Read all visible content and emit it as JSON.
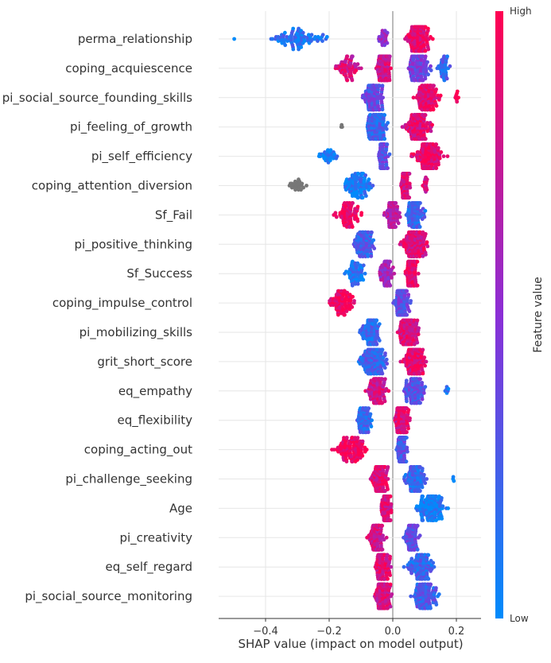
{
  "chart_data": {
    "type": "scatter",
    "subtype": "shap-beeswarm",
    "title": "",
    "xlabel": "SHAP value (impact on model output)",
    "ylabel": "",
    "xlim": [
      -0.55,
      0.27
    ],
    "x_ticks": [
      -0.4,
      -0.2,
      0.0,
      0.2
    ],
    "x_tick_labels": [
      "−0.4",
      "−0.2",
      "0.0",
      "0.2"
    ],
    "grid": true,
    "colorbar": {
      "label": "Feature value",
      "high_label": "High",
      "low_label": "Low",
      "high_color": "#ff0051",
      "low_color": "#008bfb",
      "missing_color": "#777777"
    },
    "features": [
      {
        "name": "perma_relationship",
        "clusters": [
          {
            "x": -0.5,
            "spread": 0.0,
            "value": 0.05,
            "n": 1
          },
          {
            "x": -0.3,
            "spread": 0.17,
            "value": 0.12,
            "n": 90
          },
          {
            "x": -0.03,
            "spread": 0.03,
            "value": 0.55,
            "n": 25
          },
          {
            "x": 0.08,
            "spread": 0.07,
            "value": 0.92,
            "n": 180
          }
        ]
      },
      {
        "name": "coping_acquiescence",
        "clusters": [
          {
            "x": -0.14,
            "spread": 0.07,
            "value": 0.82,
            "n": 70
          },
          {
            "x": -0.03,
            "spread": 0.05,
            "value": 0.8,
            "n": 130
          },
          {
            "x": 0.08,
            "spread": 0.07,
            "value": 0.4,
            "n": 130
          },
          {
            "x": 0.16,
            "spread": 0.04,
            "value": 0.2,
            "n": 40
          }
        ]
      },
      {
        "name": "pi_social_source_founding_skills",
        "clusters": [
          {
            "x": -0.06,
            "spread": 0.06,
            "value": 0.35,
            "n": 150
          },
          {
            "x": 0.11,
            "spread": 0.08,
            "value": 0.9,
            "n": 150
          },
          {
            "x": 0.2,
            "spread": 0.02,
            "value": 0.95,
            "n": 8
          }
        ]
      },
      {
        "name": "pi_feeling_of_growth",
        "clusters": [
          {
            "x": -0.16,
            "spread": 0.0,
            "value": -1,
            "n": 3
          },
          {
            "x": -0.05,
            "spread": 0.07,
            "value": 0.2,
            "n": 160
          },
          {
            "x": 0.08,
            "spread": 0.08,
            "value": 0.85,
            "n": 150
          }
        ]
      },
      {
        "name": "pi_self_efficiency",
        "clusters": [
          {
            "x": -0.2,
            "spread": 0.06,
            "value": 0.08,
            "n": 30
          },
          {
            "x": -0.03,
            "spread": 0.03,
            "value": 0.35,
            "n": 100
          },
          {
            "x": 0.11,
            "spread": 0.09,
            "value": 0.9,
            "n": 160
          }
        ]
      },
      {
        "name": "coping_attention_diversion",
        "clusters": [
          {
            "x": -0.3,
            "spread": 0.05,
            "value": -1,
            "n": 25
          },
          {
            "x": -0.11,
            "spread": 0.09,
            "value": 0.1,
            "n": 110
          },
          {
            "x": 0.04,
            "spread": 0.03,
            "value": 0.85,
            "n": 140
          },
          {
            "x": 0.1,
            "spread": 0.03,
            "value": 0.8,
            "n": 15
          }
        ]
      },
      {
        "name": "Sf_Fail",
        "clusters": [
          {
            "x": -0.14,
            "spread": 0.08,
            "value": 0.95,
            "n": 80
          },
          {
            "x": 0.0,
            "spread": 0.05,
            "value": 0.7,
            "n": 100
          },
          {
            "x": 0.07,
            "spread": 0.05,
            "value": 0.2,
            "n": 120
          }
        ]
      },
      {
        "name": "pi_positive_thinking",
        "clusters": [
          {
            "x": -0.09,
            "spread": 0.07,
            "value": 0.25,
            "n": 120
          },
          {
            "x": 0.07,
            "spread": 0.08,
            "value": 0.85,
            "n": 180
          }
        ]
      },
      {
        "name": "Sf_Success",
        "clusters": [
          {
            "x": -0.12,
            "spread": 0.07,
            "value": 0.12,
            "n": 60
          },
          {
            "x": -0.02,
            "spread": 0.04,
            "value": 0.6,
            "n": 90
          },
          {
            "x": 0.06,
            "spread": 0.04,
            "value": 0.9,
            "n": 130
          }
        ]
      },
      {
        "name": "coping_impulse_control",
        "clusters": [
          {
            "x": -0.16,
            "spread": 0.08,
            "value": 0.95,
            "n": 90
          },
          {
            "x": 0.03,
            "spread": 0.05,
            "value": 0.35,
            "n": 180
          }
        ]
      },
      {
        "name": "pi_mobilizing_skills",
        "clusters": [
          {
            "x": -0.07,
            "spread": 0.06,
            "value": 0.2,
            "n": 120
          },
          {
            "x": 0.05,
            "spread": 0.07,
            "value": 0.85,
            "n": 150
          }
        ]
      },
      {
        "name": "grit_short_score",
        "clusters": [
          {
            "x": -0.06,
            "spread": 0.08,
            "value": 0.22,
            "n": 150
          },
          {
            "x": 0.07,
            "spread": 0.07,
            "value": 0.88,
            "n": 150
          }
        ]
      },
      {
        "name": "eq_empathy",
        "clusters": [
          {
            "x": -0.05,
            "spread": 0.06,
            "value": 0.8,
            "n": 150
          },
          {
            "x": 0.07,
            "spread": 0.07,
            "value": 0.3,
            "n": 130
          },
          {
            "x": 0.17,
            "spread": 0.02,
            "value": 0.1,
            "n": 6
          }
        ]
      },
      {
        "name": "eq_flexibility",
        "clusters": [
          {
            "x": -0.09,
            "spread": 0.05,
            "value": 0.2,
            "n": 80
          },
          {
            "x": 0.03,
            "spread": 0.05,
            "value": 0.85,
            "n": 150
          }
        ]
      },
      {
        "name": "coping_acting_out",
        "clusters": [
          {
            "x": -0.13,
            "spread": 0.11,
            "value": 0.95,
            "n": 110
          },
          {
            "x": 0.03,
            "spread": 0.03,
            "value": 0.3,
            "n": 200
          }
        ]
      },
      {
        "name": "pi_challenge_seeking",
        "clusters": [
          {
            "x": -0.04,
            "spread": 0.05,
            "value": 0.88,
            "n": 150
          },
          {
            "x": 0.07,
            "spread": 0.07,
            "value": 0.2,
            "n": 120
          },
          {
            "x": 0.19,
            "spread": 0.01,
            "value": 0.05,
            "n": 3
          }
        ]
      },
      {
        "name": "Age",
        "clusters": [
          {
            "x": -0.02,
            "spread": 0.03,
            "value": 0.85,
            "n": 150
          },
          {
            "x": 0.12,
            "spread": 0.09,
            "value": 0.08,
            "n": 130
          }
        ]
      },
      {
        "name": "pi_creativity",
        "clusters": [
          {
            "x": -0.05,
            "spread": 0.05,
            "value": 0.8,
            "n": 150
          },
          {
            "x": 0.06,
            "spread": 0.05,
            "value": 0.35,
            "n": 110
          }
        ]
      },
      {
        "name": "eq_self_regard",
        "clusters": [
          {
            "x": -0.03,
            "spread": 0.05,
            "value": 0.85,
            "n": 150
          },
          {
            "x": 0.09,
            "spread": 0.08,
            "value": 0.2,
            "n": 130
          }
        ]
      },
      {
        "name": "pi_social_source_monitoring",
        "clusters": [
          {
            "x": -0.03,
            "spread": 0.05,
            "value": 0.82,
            "n": 150
          },
          {
            "x": 0.1,
            "spread": 0.08,
            "value": 0.25,
            "n": 130
          }
        ]
      }
    ]
  }
}
